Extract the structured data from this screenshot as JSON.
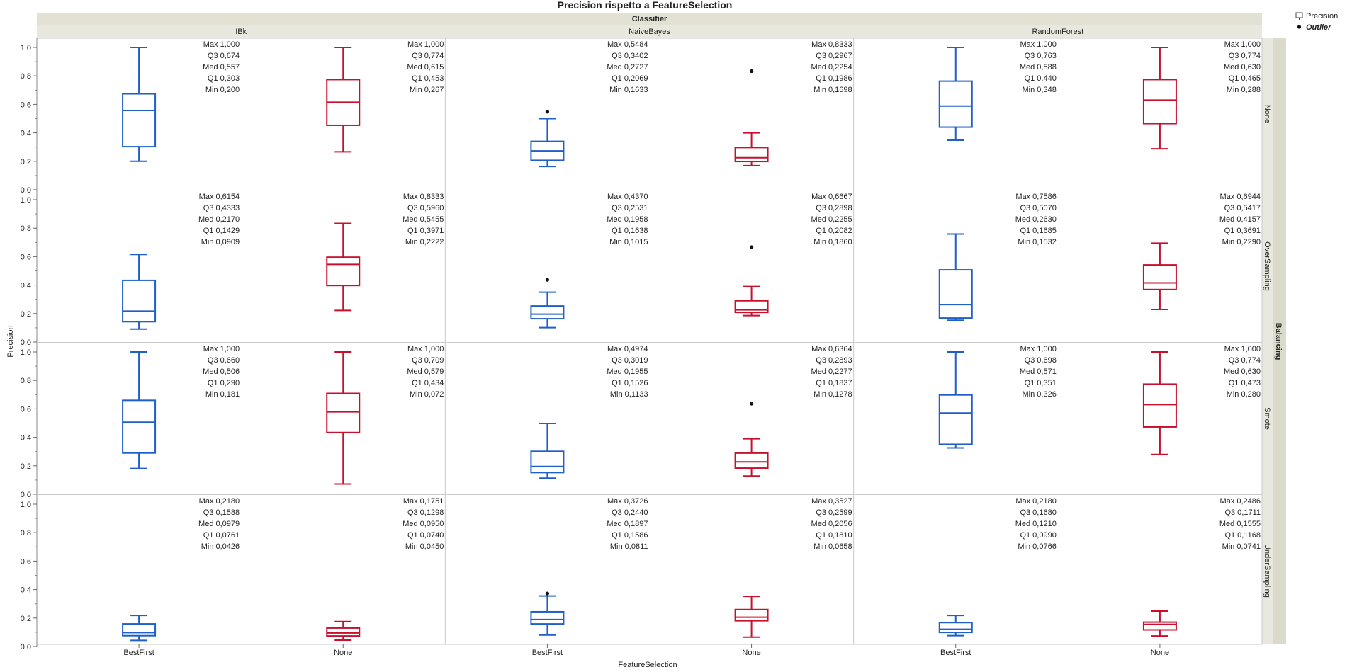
{
  "chart_data": {
    "type": "box",
    "title": "Precision rispetto a FeatureSelection",
    "column_group_label": "Classifier",
    "row_group_label": "Balancing",
    "xlabel": "FeatureSelection",
    "ylabel": "Precision",
    "ylim": [
      0,
      1
    ],
    "y_ticks": [
      "0,0",
      "0,2",
      "0,4",
      "0,6",
      "0,8",
      "1,0"
    ],
    "classifiers": [
      "IBk",
      "NaiveBayes",
      "RandomForest"
    ],
    "balancings": [
      "None",
      "OverSampling",
      "Smote",
      "UnderSampling"
    ],
    "feature_selections": [
      "BestFirst",
      "None"
    ],
    "series_colors": {
      "BestFirst": "#1f5fc8",
      "None": "#c8102e"
    },
    "stat_labels": [
      "Max",
      "Q3",
      "Med",
      "Q1",
      "Min"
    ],
    "legend": {
      "precision": "Precision",
      "outlier": "Outlier"
    },
    "grid": false,
    "panels": [
      {
        "balancing": "None",
        "classifier": "IBk",
        "boxes": [
          {
            "fs": "BestFirst",
            "max": 1.0,
            "q3": 0.674,
            "med": 0.557,
            "q1": 0.303,
            "min": 0.2,
            "labels": [
              "1,000",
              "0,674",
              "0,557",
              "0,303",
              "0,200"
            ],
            "outliers": []
          },
          {
            "fs": "None",
            "max": 1.0,
            "q3": 0.774,
            "med": 0.615,
            "q1": 0.453,
            "min": 0.267,
            "labels": [
              "1,000",
              "0,774",
              "0,615",
              "0,453",
              "0,267"
            ],
            "outliers": []
          }
        ]
      },
      {
        "balancing": "None",
        "classifier": "NaiveBayes",
        "boxes": [
          {
            "fs": "BestFirst",
            "max": 0.5484,
            "q3": 0.3402,
            "med": 0.2727,
            "q1": 0.2069,
            "min": 0.1633,
            "labels": [
              "0,5484",
              "0,3402",
              "0,2727",
              "0,2069",
              "0,1633"
            ],
            "whisker_max": 0.5,
            "outliers": [
              0.5484
            ]
          },
          {
            "fs": "None",
            "max": 0.8333,
            "q3": 0.2967,
            "med": 0.2254,
            "q1": 0.1986,
            "min": 0.1698,
            "labels": [
              "0,8333",
              "0,2967",
              "0,2254",
              "0,1986",
              "0,1698"
            ],
            "whisker_max": 0.4,
            "outliers": [
              0.8333
            ]
          }
        ]
      },
      {
        "balancing": "None",
        "classifier": "RandomForest",
        "boxes": [
          {
            "fs": "BestFirst",
            "max": 1.0,
            "q3": 0.763,
            "med": 0.588,
            "q1": 0.44,
            "min": 0.348,
            "labels": [
              "1,000",
              "0,763",
              "0,588",
              "0,440",
              "0,348"
            ],
            "outliers": []
          },
          {
            "fs": "None",
            "max": 1.0,
            "q3": 0.774,
            "med": 0.63,
            "q1": 0.465,
            "min": 0.288,
            "labels": [
              "1,000",
              "0,774",
              "0,630",
              "0,465",
              "0,288"
            ],
            "outliers": []
          }
        ]
      },
      {
        "balancing": "OverSampling",
        "classifier": "IBk",
        "boxes": [
          {
            "fs": "BestFirst",
            "max": 0.6154,
            "q3": 0.4333,
            "med": 0.217,
            "q1": 0.1429,
            "min": 0.0909,
            "labels": [
              "0,6154",
              "0,4333",
              "0,2170",
              "0,1429",
              "0,0909"
            ],
            "outliers": []
          },
          {
            "fs": "None",
            "max": 0.8333,
            "q3": 0.596,
            "med": 0.5455,
            "q1": 0.3971,
            "min": 0.2222,
            "labels": [
              "0,8333",
              "0,5960",
              "0,5455",
              "0,3971",
              "0,2222"
            ],
            "outliers": []
          }
        ]
      },
      {
        "balancing": "OverSampling",
        "classifier": "NaiveBayes",
        "boxes": [
          {
            "fs": "BestFirst",
            "max": 0.437,
            "q3": 0.2531,
            "med": 0.1958,
            "q1": 0.1638,
            "min": 0.1015,
            "labels": [
              "0,4370",
              "0,2531",
              "0,1958",
              "0,1638",
              "0,1015"
            ],
            "whisker_max": 0.35,
            "outliers": [
              0.437
            ]
          },
          {
            "fs": "None",
            "max": 0.6667,
            "q3": 0.2898,
            "med": 0.2255,
            "q1": 0.2082,
            "min": 0.186,
            "labels": [
              "0,6667",
              "0,2898",
              "0,2255",
              "0,2082",
              "0,1860"
            ],
            "whisker_max": 0.39,
            "outliers": [
              0.6667
            ]
          }
        ]
      },
      {
        "balancing": "OverSampling",
        "classifier": "RandomForest",
        "boxes": [
          {
            "fs": "BestFirst",
            "max": 0.7586,
            "q3": 0.507,
            "med": 0.263,
            "q1": 0.1685,
            "min": 0.1532,
            "labels": [
              "0,7586",
              "0,5070",
              "0,2630",
              "0,1685",
              "0,1532"
            ],
            "outliers": []
          },
          {
            "fs": "None",
            "max": 0.6944,
            "q3": 0.5417,
            "med": 0.4157,
            "q1": 0.3691,
            "min": 0.229,
            "labels": [
              "0,6944",
              "0,5417",
              "0,4157",
              "0,3691",
              "0,2290"
            ],
            "outliers": []
          }
        ]
      },
      {
        "balancing": "Smote",
        "classifier": "IBk",
        "boxes": [
          {
            "fs": "BestFirst",
            "max": 1.0,
            "q3": 0.66,
            "med": 0.506,
            "q1": 0.29,
            "min": 0.181,
            "labels": [
              "1,000",
              "0,660",
              "0,506",
              "0,290",
              "0,181"
            ],
            "outliers": []
          },
          {
            "fs": "None",
            "max": 1.0,
            "q3": 0.709,
            "med": 0.579,
            "q1": 0.434,
            "min": 0.072,
            "labels": [
              "1,000",
              "0,709",
              "0,579",
              "0,434",
              "0,072"
            ],
            "outliers": []
          }
        ]
      },
      {
        "balancing": "Smote",
        "classifier": "NaiveBayes",
        "boxes": [
          {
            "fs": "BestFirst",
            "max": 0.4974,
            "q3": 0.3019,
            "med": 0.1955,
            "q1": 0.1526,
            "min": 0.1133,
            "labels": [
              "0,4974",
              "0,3019",
              "0,1955",
              "0,1526",
              "0,1133"
            ],
            "outliers": []
          },
          {
            "fs": "None",
            "max": 0.6364,
            "q3": 0.2893,
            "med": 0.2277,
            "q1": 0.1837,
            "min": 0.1278,
            "labels": [
              "0,6364",
              "0,2893",
              "0,2277",
              "0,1837",
              "0,1278"
            ],
            "whisker_max": 0.39,
            "outliers": [
              0.6364
            ]
          }
        ]
      },
      {
        "balancing": "Smote",
        "classifier": "RandomForest",
        "boxes": [
          {
            "fs": "BestFirst",
            "max": 1.0,
            "q3": 0.698,
            "med": 0.571,
            "q1": 0.351,
            "min": 0.326,
            "labels": [
              "1,000",
              "0,698",
              "0,571",
              "0,351",
              "0,326"
            ],
            "outliers": []
          },
          {
            "fs": "None",
            "max": 1.0,
            "q3": 0.774,
            "med": 0.63,
            "q1": 0.473,
            "min": 0.28,
            "labels": [
              "1,000",
              "0,774",
              "0,630",
              "0,473",
              "0,280"
            ],
            "outliers": []
          }
        ]
      },
      {
        "balancing": "UnderSampling",
        "classifier": "IBk",
        "boxes": [
          {
            "fs": "BestFirst",
            "max": 0.218,
            "q3": 0.1588,
            "med": 0.0979,
            "q1": 0.0761,
            "min": 0.0426,
            "labels": [
              "0,2180",
              "0,1588",
              "0,0979",
              "0,0761",
              "0,0426"
            ],
            "outliers": []
          },
          {
            "fs": "None",
            "max": 0.1751,
            "q3": 0.1298,
            "med": 0.095,
            "q1": 0.074,
            "min": 0.045,
            "labels": [
              "0,1751",
              "0,1298",
              "0,0950",
              "0,0740",
              "0,0450"
            ],
            "outliers": []
          }
        ]
      },
      {
        "balancing": "UnderSampling",
        "classifier": "NaiveBayes",
        "boxes": [
          {
            "fs": "BestFirst",
            "max": 0.3726,
            "q3": 0.244,
            "med": 0.1897,
            "q1": 0.1586,
            "min": 0.0811,
            "labels": [
              "0,3726",
              "0,2440",
              "0,1897",
              "0,1586",
              "0,0811"
            ],
            "whisker_max": 0.355,
            "outliers": [
              0.3726
            ]
          },
          {
            "fs": "None",
            "max": 0.3527,
            "q3": 0.2599,
            "med": 0.2056,
            "q1": 0.181,
            "min": 0.0658,
            "labels": [
              "0,3527",
              "0,2599",
              "0,2056",
              "0,1810",
              "0,0658"
            ],
            "outliers": []
          }
        ]
      },
      {
        "balancing": "UnderSampling",
        "classifier": "RandomForest",
        "boxes": [
          {
            "fs": "BestFirst",
            "max": 0.218,
            "q3": 0.168,
            "med": 0.121,
            "q1": 0.099,
            "min": 0.0766,
            "labels": [
              "0,2180",
              "0,1680",
              "0,1210",
              "0,0990",
              "0,0766"
            ],
            "outliers": []
          },
          {
            "fs": "None",
            "max": 0.2486,
            "q3": 0.1711,
            "med": 0.1555,
            "q1": 0.1168,
            "min": 0.0741,
            "labels": [
              "0,2486",
              "0,1711",
              "0,1555",
              "0,1168",
              "0,0741"
            ],
            "outliers": []
          }
        ]
      }
    ]
  }
}
